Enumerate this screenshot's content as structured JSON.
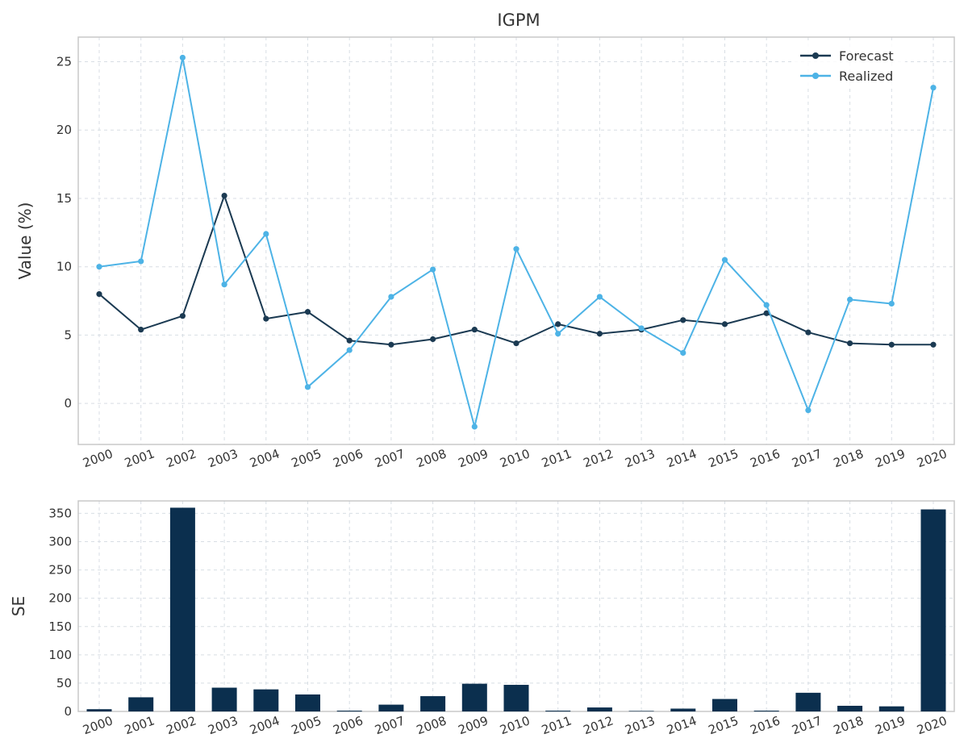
{
  "chart_data": [
    {
      "type": "line",
      "title": "IGPM",
      "xlabel": "",
      "ylabel": "Value (%)",
      "categories": [
        "2000",
        "2001",
        "2002",
        "2003",
        "2004",
        "2005",
        "2006",
        "2007",
        "2008",
        "2009",
        "2010",
        "2011",
        "2012",
        "2013",
        "2014",
        "2015",
        "2016",
        "2017",
        "2018",
        "2019",
        "2020"
      ],
      "yticks": [
        0,
        5,
        10,
        15,
        20,
        25
      ],
      "ylim": [
        -3,
        26.8
      ],
      "grid": true,
      "legend_position": "top-right",
      "series": [
        {
          "name": "Forecast",
          "color": "#1b3a52",
          "values": [
            8.0,
            5.4,
            6.4,
            15.2,
            6.2,
            6.7,
            4.6,
            4.3,
            4.7,
            5.4,
            4.4,
            5.8,
            5.1,
            5.4,
            6.1,
            5.8,
            6.6,
            5.2,
            4.4,
            4.3,
            4.3
          ]
        },
        {
          "name": "Realized",
          "color": "#4db3e6",
          "values": [
            10.0,
            10.4,
            25.3,
            8.7,
            12.4,
            1.2,
            3.9,
            7.8,
            9.8,
            -1.7,
            11.3,
            5.1,
            7.8,
            5.5,
            3.7,
            10.5,
            7.2,
            -0.5,
            7.6,
            7.3,
            23.1
          ]
        }
      ]
    },
    {
      "type": "bar",
      "title": "",
      "xlabel": "",
      "ylabel": "SE",
      "categories": [
        "2000",
        "2001",
        "2002",
        "2003",
        "2004",
        "2005",
        "2006",
        "2007",
        "2008",
        "2009",
        "2010",
        "2011",
        "2012",
        "2013",
        "2014",
        "2015",
        "2016",
        "2017",
        "2018",
        "2019",
        "2020"
      ],
      "yticks": [
        0,
        50,
        100,
        150,
        200,
        250,
        300,
        350
      ],
      "ylim": [
        0,
        372
      ],
      "grid": true,
      "color": "#0b2f4e",
      "values": [
        4,
        25,
        360,
        42,
        39,
        30,
        1,
        12,
        27,
        49,
        47,
        1,
        7,
        0,
        5,
        22,
        1,
        33,
        10,
        9,
        357
      ]
    }
  ]
}
